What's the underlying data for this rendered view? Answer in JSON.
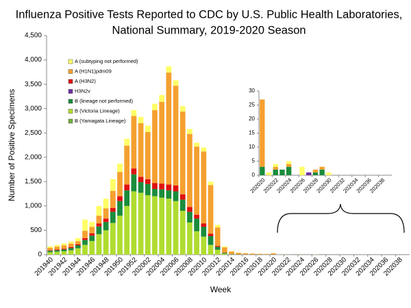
{
  "chart_data": [
    {
      "type": "stacked-bar",
      "title": "Influenza Positive Tests Reported to CDC by U.S. Public Health Laboratories,",
      "subtitle": "National Summary, 2019-2020 Season",
      "x_label": "Week",
      "y_label": "Number of Positive Specimens",
      "categories": [
        "201940",
        null,
        "201942",
        null,
        "201944",
        null,
        "201946",
        null,
        "201948",
        null,
        "201950",
        null,
        "201952",
        null,
        "202002",
        null,
        "202004",
        null,
        "202006",
        null,
        "202008",
        null,
        "202010",
        null,
        "202012",
        null,
        "202014",
        null,
        "202016",
        null,
        "202018",
        null,
        "202020",
        null,
        "202022",
        null,
        "202024",
        null,
        "202026",
        null,
        "202028",
        null,
        "202030",
        null,
        "202032",
        null,
        "202034",
        null,
        "202036",
        null,
        "202038",
        null
      ],
      "series": [
        {
          "name": "A (subtyping not performed)",
          "color": "#ffff66",
          "values": [
            30,
            35,
            40,
            45,
            65,
            230,
            100,
            200,
            200,
            240,
            170,
            140,
            120,
            130,
            130,
            130,
            140,
            130,
            110,
            110,
            100,
            80,
            80,
            70,
            50,
            20,
            8,
            4,
            3,
            3,
            3,
            2,
            0,
            1,
            1,
            0,
            1,
            0,
            3,
            0,
            0,
            0,
            1,
            0,
            0,
            0,
            0,
            0,
            0,
            0,
            0,
            0
          ]
        },
        {
          "name": "A (H1N1)pdm09",
          "color": "#f5a030",
          "values": [
            50,
            60,
            70,
            70,
            60,
            150,
            130,
            160,
            210,
            350,
            500,
            800,
            1080,
            1100,
            970,
            1500,
            1680,
            2300,
            2050,
            1700,
            1500,
            1400,
            1480,
            1000,
            380,
            110,
            50,
            30,
            23,
            19,
            15,
            11,
            24,
            0,
            1,
            0,
            1,
            0,
            0,
            0,
            1,
            1,
            0,
            0,
            0,
            0,
            0,
            0,
            0,
            0,
            0,
            0
          ]
        },
        {
          "name": "A (H3N2)",
          "color": "#e01010",
          "values": [
            10,
            15,
            15,
            20,
            25,
            40,
            50,
            60,
            70,
            80,
            100,
            120,
            120,
            110,
            100,
            120,
            120,
            120,
            120,
            110,
            100,
            80,
            70,
            50,
            20,
            5,
            2,
            1,
            1,
            0,
            0,
            0,
            0,
            0,
            0,
            0,
            0,
            0,
            0,
            0,
            0,
            0,
            0,
            0,
            0,
            0,
            0,
            0,
            0,
            0,
            0,
            0
          ]
        },
        {
          "name": "H3N2v",
          "color": "#7030a0",
          "values": [
            0,
            0,
            0,
            0,
            0,
            0,
            0,
            0,
            0,
            0,
            0,
            0,
            0,
            0,
            0,
            0,
            0,
            0,
            0,
            0,
            0,
            0,
            0,
            0,
            0,
            0,
            0,
            0,
            0,
            0,
            0,
            0,
            0,
            0,
            0,
            0,
            0,
            0,
            0,
            1,
            0,
            0,
            0,
            0,
            0,
            0,
            0,
            0,
            0,
            0,
            0,
            0
          ]
        },
        {
          "name": "B (lineage not performed)",
          "color": "#1a8c3c",
          "values": [
            30,
            30,
            35,
            45,
            60,
            100,
            110,
            160,
            170,
            230,
            300,
            320,
            350,
            220,
            230,
            150,
            170,
            170,
            200,
            230,
            220,
            260,
            200,
            180,
            60,
            15,
            5,
            3,
            2,
            2,
            2,
            2,
            3,
            0,
            2,
            2,
            3,
            0,
            0,
            0,
            1,
            2,
            0,
            0,
            0,
            0,
            0,
            0,
            0,
            0,
            0,
            0
          ]
        },
        {
          "name": "B (Victoria Lineage)",
          "color": "#b0dc30",
          "values": [
            50,
            60,
            70,
            90,
            130,
            200,
            280,
            420,
            500,
            650,
            800,
            1000,
            1300,
            1270,
            1220,
            1200,
            1170,
            1150,
            1100,
            900,
            660,
            480,
            370,
            200,
            100,
            20,
            5,
            2,
            1,
            1,
            0,
            0,
            0,
            0,
            0,
            0,
            0,
            0,
            0,
            0,
            0,
            0,
            0,
            0,
            0,
            0,
            0,
            0,
            0,
            0,
            0,
            0
          ]
        },
        {
          "name": "B (Yamagata Lineage)",
          "color": "#70b040",
          "values": [
            0,
            0,
            0,
            0,
            0,
            0,
            0,
            0,
            0,
            0,
            0,
            0,
            0,
            0,
            0,
            0,
            0,
            0,
            0,
            0,
            0,
            0,
            0,
            0,
            0,
            0,
            0,
            0,
            0,
            0,
            0,
            0,
            0,
            0,
            0,
            0,
            0,
            0,
            0,
            0,
            0,
            0,
            0,
            0,
            0,
            0,
            0,
            0,
            0,
            0,
            0,
            0
          ]
        }
      ],
      "ylim": [
        0,
        4500
      ],
      "yticks": [
        0,
        500,
        {
          "value": 1000,
          "label": "1,000"
        },
        {
          "value": 1500,
          "label": "1,500"
        },
        {
          "value": 2000,
          "label": "2,000"
        },
        {
          "value": 2500,
          "label": "2,500"
        },
        {
          "value": 3000,
          "label": "3,000"
        },
        {
          "value": 3500,
          "label": "3,500"
        },
        {
          "value": 4000,
          "label": "4,000"
        },
        {
          "value": 4500,
          "label": "4,500"
        }
      ],
      "legend": "top-left"
    },
    {
      "type": "stacked-bar",
      "categories": [
        "202020",
        null,
        "202022",
        null,
        "202024",
        null,
        "202026",
        null,
        "202028",
        null,
        "202030",
        null,
        "202032",
        null,
        "202034",
        null,
        "202036",
        null,
        "202038",
        null
      ],
      "series": [
        {
          "color": "#ffff66",
          "values": [
            0,
            1,
            1,
            0,
            1,
            0,
            3,
            0,
            0,
            0,
            1,
            0,
            0,
            0,
            0,
            0,
            0,
            0,
            0,
            0
          ]
        },
        {
          "color": "#f5a030",
          "values": [
            24,
            0,
            1,
            0,
            1,
            0,
            0,
            0,
            1,
            1,
            0,
            0,
            0,
            0,
            0,
            0,
            0,
            0,
            0,
            0
          ]
        },
        {
          "color": "#e01010",
          "values": [
            0,
            0,
            0,
            0,
            0,
            0,
            0,
            0,
            0,
            0,
            0,
            0,
            0,
            0,
            0,
            0,
            0,
            0,
            0,
            0
          ]
        },
        {
          "color": "#7030a0",
          "values": [
            0,
            0,
            0,
            0,
            0,
            0,
            0,
            1,
            0,
            0,
            0,
            0,
            0,
            0,
            0,
            0,
            0,
            0,
            0,
            0
          ]
        },
        {
          "color": "#1a8c3c",
          "values": [
            3,
            0,
            2,
            2,
            3,
            0,
            0,
            0,
            1,
            2,
            0,
            0,
            0,
            0,
            0,
            0,
            0,
            0,
            0,
            0
          ]
        },
        {
          "color": "#b0dc30",
          "values": [
            0,
            0,
            0,
            0,
            0,
            0,
            0,
            0,
            0,
            0,
            0,
            0,
            0,
            0,
            0,
            0,
            0,
            0,
            0,
            0
          ]
        },
        {
          "color": "#70b040",
          "values": [
            0,
            0,
            0,
            0,
            0,
            0,
            0,
            0,
            0,
            0,
            0,
            0,
            0,
            0,
            0,
            0,
            0,
            0,
            0,
            0
          ]
        }
      ],
      "ylim": [
        0,
        30
      ],
      "yticks": [
        0,
        5,
        10,
        15,
        20,
        25,
        30
      ]
    }
  ]
}
